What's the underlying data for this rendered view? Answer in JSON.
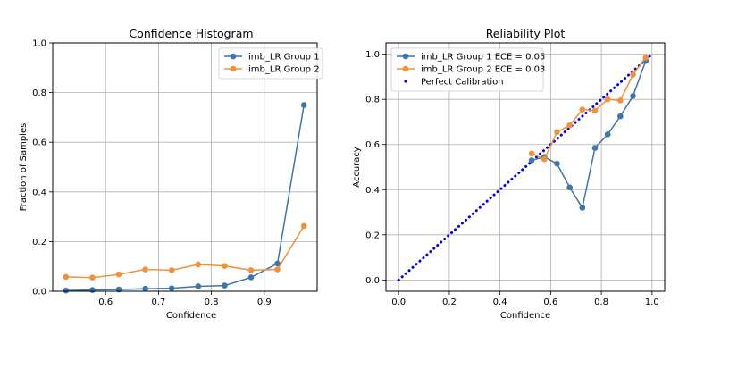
{
  "chart_data": [
    {
      "type": "line",
      "title": "Confidence Histogram",
      "xlabel": "Confidence",
      "ylabel": "Fraction of Samples",
      "xlim": [
        0.5,
        1.0
      ],
      "ylim": [
        0.0,
        1.0
      ],
      "xticks": [
        0.6,
        0.7,
        0.8,
        0.9
      ],
      "yticks": [
        0.0,
        0.2,
        0.4,
        0.6,
        0.8,
        1.0
      ],
      "xtick_labels": [
        "0.6",
        "0.7",
        "0.8",
        "0.9"
      ],
      "ytick_labels": [
        "0.0",
        "0.2",
        "0.4",
        "0.6",
        "0.8",
        "1.0"
      ],
      "grid": true,
      "legend_position": "top-right",
      "series": [
        {
          "name": "imb_LR Group 1",
          "color": "#3d75ad",
          "marker": "o",
          "x": [
            0.525,
            0.575,
            0.625,
            0.675,
            0.725,
            0.775,
            0.825,
            0.875,
            0.925,
            0.975
          ],
          "y": [
            0.003,
            0.005,
            0.007,
            0.01,
            0.012,
            0.02,
            0.023,
            0.056,
            0.112,
            0.75
          ]
        },
        {
          "name": "imb_LR Group 2",
          "color": "#f0923a",
          "marker": "o",
          "x": [
            0.525,
            0.575,
            0.625,
            0.675,
            0.725,
            0.775,
            0.825,
            0.875,
            0.925,
            0.975
          ],
          "y": [
            0.058,
            0.055,
            0.068,
            0.088,
            0.085,
            0.108,
            0.102,
            0.085,
            0.088,
            0.263
          ]
        }
      ]
    },
    {
      "type": "line",
      "title": "Reliability Plot",
      "xlabel": "Confidence",
      "ylabel": "Accuracy",
      "xlim": [
        -0.05,
        1.05
      ],
      "ylim": [
        -0.05,
        1.05
      ],
      "xticks": [
        0.0,
        0.2,
        0.4,
        0.6,
        0.8,
        1.0
      ],
      "yticks": [
        0.0,
        0.2,
        0.4,
        0.6,
        0.8,
        1.0
      ],
      "xtick_labels": [
        "0.0",
        "0.2",
        "0.4",
        "0.6",
        "0.8",
        "1.0"
      ],
      "ytick_labels": [
        "0.0",
        "0.2",
        "0.4",
        "0.6",
        "0.8",
        "1.0"
      ],
      "grid": true,
      "legend_position": "top-left",
      "series": [
        {
          "name": "imb_LR Group 1 ECE = 0.05",
          "color": "#3d75ad",
          "marker": "o",
          "x": [
            0.525,
            0.575,
            0.625,
            0.675,
            0.725,
            0.775,
            0.825,
            0.875,
            0.925,
            0.975
          ],
          "y": [
            0.53,
            0.545,
            0.515,
            0.41,
            0.32,
            0.585,
            0.645,
            0.725,
            0.815,
            0.97
          ]
        },
        {
          "name": "imb_LR Group 2 ECE = 0.03",
          "color": "#f0923a",
          "marker": "o",
          "x": [
            0.525,
            0.575,
            0.625,
            0.675,
            0.725,
            0.775,
            0.825,
            0.875,
            0.925,
            0.975
          ],
          "y": [
            0.56,
            0.535,
            0.655,
            0.685,
            0.755,
            0.75,
            0.8,
            0.795,
            0.91,
            0.985
          ]
        },
        {
          "name": "Perfect Calibration",
          "color": "#0000ee",
          "marker": "dotted-line",
          "x": [
            0.0,
            1.0
          ],
          "y": [
            0.0,
            1.0
          ]
        }
      ]
    }
  ]
}
